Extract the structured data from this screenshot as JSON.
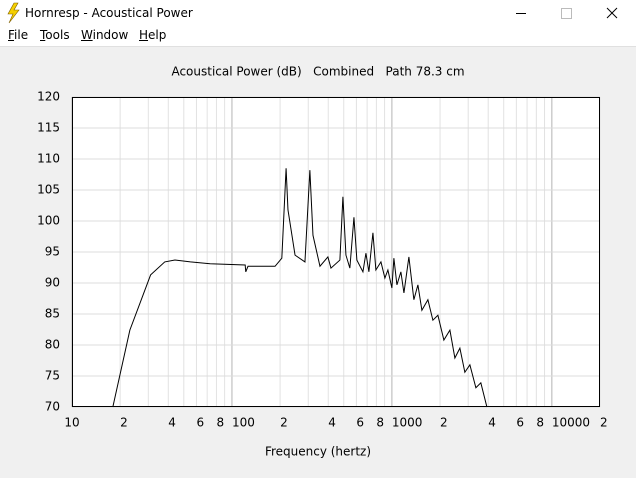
{
  "window": {
    "title": "Hornresp - Acoustical Power"
  },
  "menu": [
    "File",
    "Tools",
    "Window",
    "Help"
  ],
  "chart_data": {
    "type": "line",
    "title": "Acoustical Power (dB)   Combined   Path 78.3 cm",
    "xlabel": "Frequency (hertz)",
    "xscale": "log",
    "xlim": [
      10,
      20000
    ],
    "ylim": [
      70,
      120
    ],
    "xticks": [
      10,
      {
        "value": 20,
        "label": "2"
      },
      {
        "value": 40,
        "label": "4"
      },
      {
        "value": 60,
        "label": "6"
      },
      {
        "value": 80,
        "label": "8"
      },
      100,
      {
        "value": 200,
        "label": "2"
      },
      {
        "value": 400,
        "label": "4"
      },
      {
        "value": 600,
        "label": "6"
      },
      {
        "value": 800,
        "label": "8"
      },
      1000,
      {
        "value": 2000,
        "label": "2"
      },
      {
        "value": 4000,
        "label": "4"
      },
      {
        "value": 6000,
        "label": "6"
      },
      {
        "value": 8000,
        "label": "8"
      },
      10000,
      {
        "value": 20000,
        "label": "2"
      }
    ],
    "xminorticks": [
      30,
      50,
      70,
      90,
      300,
      500,
      700,
      900,
      3000,
      5000,
      7000,
      9000
    ],
    "yticks": [
      70,
      75,
      80,
      85,
      90,
      95,
      100,
      105,
      110,
      115,
      120
    ],
    "grid": true,
    "color": "#000000",
    "x": [
      18,
      23,
      31,
      38,
      44,
      55,
      73,
      121,
      122,
      126,
      186,
      205,
      218,
      224,
      248,
      286,
      307,
      321,
      355,
      398,
      416,
      473,
      494,
      516,
      546,
      579,
      604,
      659,
      688,
      718,
      761,
      794,
      854,
      904,
      944,
      1000,
      1029,
      1075,
      1138,
      1189,
      1277,
      1372,
      1454,
      1540,
      1679,
      1804,
      1939,
      2113,
      2305,
      2476,
      2661,
      2858,
      3073,
      3350,
      3598,
      3926
    ],
    "values": [
      70,
      82.4,
      91.3,
      93.4,
      93.7,
      93.4,
      93.1,
      92.9,
      91.8,
      92.7,
      92.7,
      94,
      108.5,
      101.8,
      94.5,
      93.4,
      108.2,
      97.7,
      92.7,
      94.2,
      92.4,
      93.7,
      103.9,
      94.5,
      92.4,
      100.6,
      93.7,
      91.8,
      94.8,
      91.8,
      98.1,
      92.1,
      93.4,
      90.8,
      92.1,
      89.2,
      94,
      89.7,
      91.8,
      88.4,
      94.2,
      87.3,
      89.7,
      85.6,
      87.3,
      84,
      84.8,
      80.8,
      82.4,
      77.9,
      79.5,
      75.6,
      76.8,
      73.1,
      73.9,
      70
    ]
  }
}
